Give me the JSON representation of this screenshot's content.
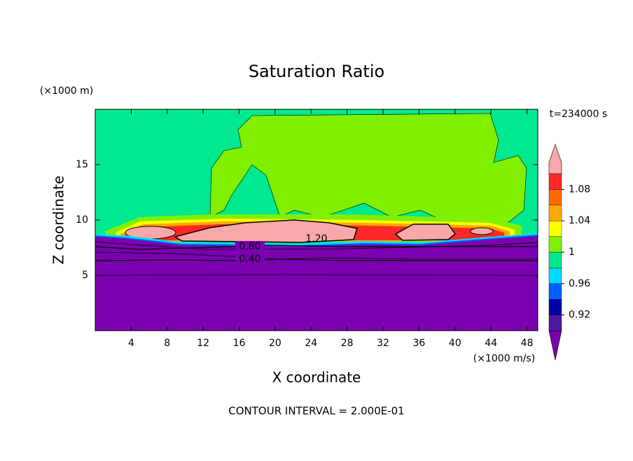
{
  "chart_data": {
    "type": "contour",
    "title": "Saturation Ratio",
    "x_label": "X coordinate",
    "x_unit": "(×1000 m/s)",
    "y_label": "Z coordinate",
    "y_unit": "(×1000 m)",
    "time_label": "t=234000 s",
    "footer": "CONTOUR INTERVAL = 2.000E-01",
    "xlim": [
      0,
      49.2
    ],
    "xticks": [
      4,
      8,
      12,
      16,
      20,
      24,
      28,
      32,
      36,
      40,
      44,
      48
    ],
    "ylim": [
      0,
      20
    ],
    "yticks": [
      5,
      10,
      15
    ],
    "contour_labels": [
      {
        "value": 0.8,
        "label": "0.80"
      },
      {
        "value": 0.4,
        "label": "0.40"
      },
      {
        "value": 1.2,
        "label": "1.20"
      }
    ],
    "colorbar": {
      "levels": [
        0.9,
        0.92,
        0.94,
        0.96,
        0.98,
        1,
        1.02,
        1.04,
        1.06,
        1.08,
        1.1
      ],
      "colors": [
        "#4c1aa0",
        "#0000a8",
        "#0060ff",
        "#00dcff",
        "#00e890",
        "#80f000",
        "#ffff00",
        "#ffa800",
        "#ff6a00",
        "#ff2828"
      ],
      "under_color": "#7a00b0",
      "over_color": "#f8a8a8",
      "ticks": [
        0.92,
        0.96,
        1,
        1.04,
        1.08
      ]
    }
  }
}
